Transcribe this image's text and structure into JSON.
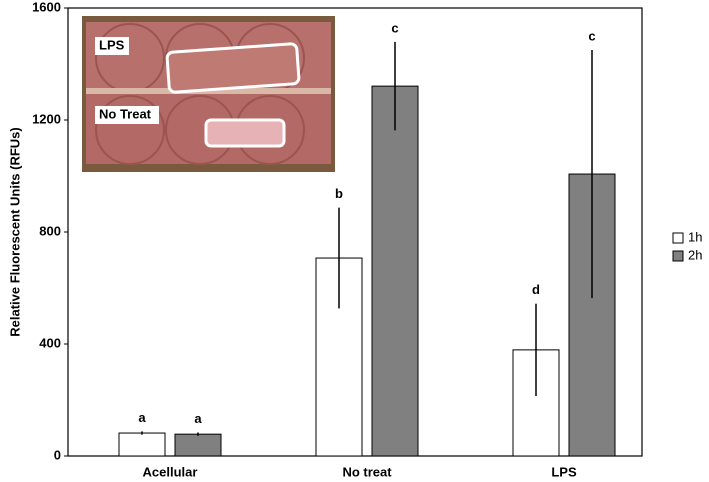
{
  "chart_data": {
    "type": "bar",
    "ylabel": "Relative Fluorescent Units (RFUs)",
    "categories": [
      "Acellular",
      "No treat",
      "LPS"
    ],
    "series": [
      {
        "name": "1h",
        "color": "#ffffff",
        "values": [
          82,
          707,
          379
        ],
        "errors": [
          6,
          180,
          165
        ],
        "letters": [
          "a",
          "b",
          "d"
        ]
      },
      {
        "name": "2h",
        "color": "#808080",
        "values": [
          78,
          1321,
          1007
        ],
        "errors": [
          6,
          158,
          443
        ],
        "letters": [
          "a",
          "c",
          "c"
        ]
      }
    ],
    "ylim": [
      0,
      1600
    ],
    "yticks": [
      0,
      400,
      800,
      1200,
      1600
    ],
    "grid": false,
    "legend": "right"
  },
  "inset": {
    "labels": [
      "LPS",
      "No Treat"
    ]
  }
}
